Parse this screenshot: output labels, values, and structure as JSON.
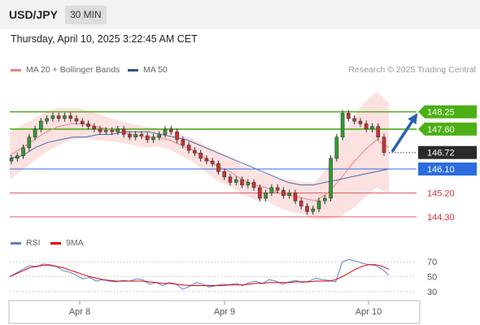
{
  "header": {
    "symbol": "USD/JPY",
    "timeframe": "30 MIN"
  },
  "datetime": "Thursday, April 10, 2025 3:22:45 AM CET",
  "legend": {
    "ma20": {
      "label": "MA 20 + Bollinger Bands",
      "color": "#f08080"
    },
    "ma50": {
      "label": "MA 50",
      "color": "#2f4f8f"
    }
  },
  "credit": "Research © 2025 Trading Central",
  "rsi_legend": {
    "rsi": {
      "label": "RSI",
      "color": "#5b7fd6"
    },
    "ma9": {
      "label": "9MA",
      "color": "#e00000"
    }
  },
  "chart_data": [
    {
      "type": "line",
      "title": "",
      "description_levels": "price chart with support/resistance levels",
      "x_ticks": [
        "Apr 8",
        "Apr 9",
        "Apr 10"
      ],
      "ylim": [
        143.9,
        149.4
      ],
      "levels": [
        {
          "value": 148.25,
          "label": "148.25",
          "style": "resistance"
        },
        {
          "value": 147.6,
          "label": "147.60",
          "style": "resistance"
        },
        {
          "value": 146.72,
          "label": "146.72",
          "style": "last"
        },
        {
          "value": 146.1,
          "label": "146.10",
          "style": "pivot"
        },
        {
          "value": 145.2,
          "label": "145.20",
          "style": "support"
        },
        {
          "value": 144.3,
          "label": "144.30",
          "style": "support"
        }
      ],
      "series": [
        {
          "name": "Price",
          "values": [
            146.5,
            146.6,
            146.9,
            147.3,
            147.6,
            147.9,
            148.0,
            148.1,
            148.0,
            148.1,
            148.0,
            147.9,
            147.8,
            147.7,
            147.6,
            147.5,
            147.55,
            147.5,
            147.6,
            147.4,
            147.3,
            147.4,
            147.35,
            147.2,
            147.3,
            147.4,
            147.6,
            147.5,
            147.2,
            147.0,
            146.8,
            146.7,
            146.5,
            146.4,
            146.3,
            146.0,
            145.8,
            145.6,
            145.7,
            145.5,
            145.6,
            145.4,
            145.0,
            145.2,
            145.4,
            145.3,
            145.1,
            145.2,
            144.9,
            144.7,
            144.5,
            144.6,
            144.9,
            145.0,
            146.5,
            147.3,
            148.2,
            148.0,
            147.9,
            147.8,
            147.6,
            147.7,
            147.3,
            146.72
          ]
        },
        {
          "name": "MA 20",
          "values": [
            146.6,
            146.9,
            147.2,
            147.5,
            147.7,
            147.8,
            147.8,
            147.7,
            147.6,
            147.5,
            147.4,
            147.3,
            147.3,
            147.2,
            147.0,
            146.8,
            146.5,
            146.2,
            146.0,
            145.7,
            145.5,
            145.4,
            145.2,
            145.1,
            145.0,
            144.9,
            145.2,
            145.7,
            146.3,
            146.8,
            147.2,
            146.9
          ]
        },
        {
          "name": "MA 50",
          "values": [
            146.5,
            146.6,
            146.9,
            147.1,
            147.2,
            147.3,
            147.3,
            147.4,
            147.4,
            147.5,
            147.5,
            147.5,
            147.4,
            147.3,
            147.2,
            147.0,
            146.8,
            146.6,
            146.4,
            146.2,
            146.0,
            145.8,
            145.6,
            145.5,
            145.5,
            145.6,
            145.7,
            145.8,
            145.9,
            146.0,
            146.1
          ]
        }
      ]
    },
    {
      "type": "line",
      "title": "",
      "ylim": [
        20,
        80
      ],
      "y_ticks": [
        "70",
        "50",
        "30"
      ],
      "series": [
        {
          "name": "RSI",
          "values": [
            50,
            55,
            60,
            65,
            63,
            67,
            66,
            64,
            58,
            56,
            52,
            47,
            49,
            44,
            46,
            44,
            43,
            45,
            44,
            47,
            46,
            40,
            42,
            38,
            42,
            40,
            33,
            37,
            42,
            40,
            36,
            38,
            40,
            39,
            41,
            38,
            42,
            44,
            41,
            46,
            44,
            40,
            43,
            45,
            42,
            44,
            48,
            46,
            45,
            43,
            70,
            73,
            71,
            68,
            66,
            65,
            60,
            52
          ]
        },
        {
          "name": "9MA",
          "values": [
            50,
            54,
            58,
            62,
            64,
            65,
            65,
            64,
            62,
            59,
            56,
            53,
            50,
            48,
            46,
            45,
            44,
            44,
            44,
            44,
            44,
            43,
            42,
            41,
            41,
            40,
            39,
            38,
            38,
            38,
            38,
            38,
            38,
            39,
            39,
            39,
            40,
            41,
            41,
            42,
            42,
            42,
            42,
            43,
            43,
            43,
            44,
            44,
            44,
            46,
            50,
            55,
            60,
            64,
            66,
            66,
            64,
            60
          ]
        }
      ]
    }
  ]
}
